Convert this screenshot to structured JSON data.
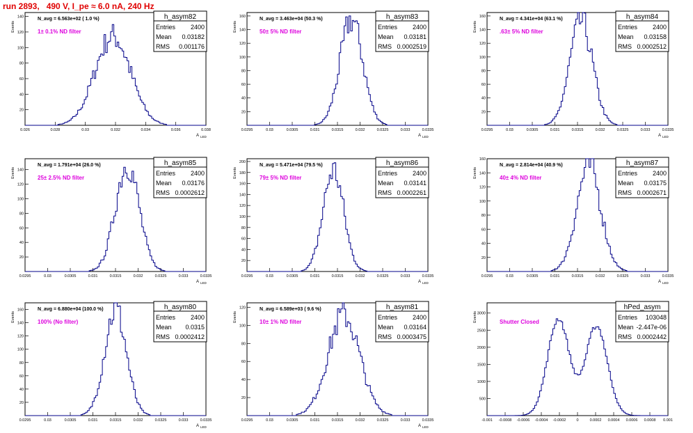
{
  "run_title": "run 2893,   490 V, I_pe ≈ 6.0 nA, 240 Hz",
  "stats_labels": [
    "Entries",
    "Mean",
    "RMS"
  ],
  "chart_data": [
    {
      "type": "histogram",
      "name": "h_asym82",
      "navg": "N_avg = 6.563e+02 ( 1.0 %)",
      "filter": "1± 0.1% ND filter",
      "entries": "2400",
      "mean": "0.03182",
      "rms": "0.001176",
      "ylabel": "Events",
      "xlabel": "A",
      "xlabel_sub": "LED",
      "xlim": [
        0.026,
        0.038
      ],
      "ylim": [
        0,
        145
      ],
      "xticks": [
        "0.026",
        "0.028",
        "0.03",
        "0.032",
        "0.034",
        "0.036",
        "0.038"
      ],
      "yticks": [
        "20",
        "40",
        "60",
        "80",
        "100",
        "120",
        "140"
      ],
      "stats_mean": 0.03182,
      "stats_rms": 0.001176,
      "peak": 115
    },
    {
      "type": "histogram",
      "name": "h_asym83",
      "navg": "N_avg = 3.463e+04 (50.3 %)",
      "filter": "50± 5% ND filter",
      "entries": "2400",
      "mean": "0.03181",
      "rms": "0.0002519",
      "ylabel": "Events",
      "xlabel": "A",
      "xlabel_sub": "LED",
      "xlim": [
        0.0295,
        0.0335
      ],
      "ylim": [
        0,
        165
      ],
      "xticks": [
        "0.0295",
        "0.03",
        "0.0305",
        "0.031",
        "0.0315",
        "0.032",
        "0.0325",
        "0.033",
        "0.0335"
      ],
      "yticks": [
        "20",
        "40",
        "60",
        "80",
        "100",
        "120",
        "140",
        "160"
      ],
      "stats_mean": 0.03181,
      "stats_rms": 0.0002519,
      "peak": 155
    },
    {
      "type": "histogram",
      "name": "h_asym84",
      "navg": "N_avg = 4.341e+04 (63.1 %)",
      "filter": ".63± 5% ND filter",
      "entries": "2400",
      "mean": "0.03158",
      "rms": "0.0002512",
      "ylabel": "Events",
      "xlabel": "A",
      "xlabel_sub": "LED",
      "xlim": [
        0.0295,
        0.0335
      ],
      "ylim": [
        0,
        165
      ],
      "xticks": [
        "0.0295",
        "0.03",
        "0.0305",
        "0.031",
        "0.0315",
        "0.032",
        "0.0325",
        "0.033",
        "0.0335"
      ],
      "yticks": [
        "20",
        "40",
        "60",
        "80",
        "100",
        "120",
        "140",
        "160"
      ],
      "stats_mean": 0.03158,
      "stats_rms": 0.0002512,
      "peak": 152
    },
    {
      "type": "histogram",
      "name": "h_asym85",
      "navg": "N_avg = 1.791e+04 (26.0 %)",
      "filter": "25± 2.5% ND filter",
      "entries": "2400",
      "mean": "0.03176",
      "rms": "0.0002612",
      "ylabel": "Events",
      "xlabel": "A",
      "xlabel_sub": "LED",
      "xlim": [
        0.0295,
        0.0335
      ],
      "ylim": [
        0,
        155
      ],
      "xticks": [
        "0.0295",
        "0.03",
        "0.0305",
        "0.031",
        "0.0315",
        "0.032",
        "0.0325",
        "0.033",
        "0.0335"
      ],
      "yticks": [
        "20",
        "40",
        "60",
        "80",
        "100",
        "120",
        "140"
      ],
      "stats_mean": 0.03176,
      "stats_rms": 0.0002612,
      "peak": 148
    },
    {
      "type": "histogram",
      "name": "h_asym86",
      "navg": "N_avg = 5.471e+04 (79.5 %)",
      "filter": "79± 5% ND filter",
      "entries": "2400",
      "mean": "0.03141",
      "rms": "0.0002261",
      "ylabel": "Events",
      "xlabel": "A",
      "xlabel_sub": "LED",
      "xlim": [
        0.0295,
        0.0335
      ],
      "ylim": [
        0,
        205
      ],
      "xticks": [
        "0.0295",
        "0.03",
        "0.0305",
        "0.031",
        "0.0315",
        "0.032",
        "0.0325",
        "0.033",
        "0.0335"
      ],
      "yticks": [
        "20",
        "40",
        "60",
        "80",
        "100",
        "120",
        "140",
        "160",
        "180",
        "200"
      ],
      "stats_mean": 0.03141,
      "stats_rms": 0.0002261,
      "peak": 185
    },
    {
      "type": "histogram",
      "name": "h_asym87",
      "navg": "N_avg = 2.814e+04 (40.9 %)",
      "filter": "40± 4% ND filter",
      "entries": "2400",
      "mean": "0.03175",
      "rms": "0.0002671",
      "ylabel": "Events",
      "xlabel": "A",
      "xlabel_sub": "LED",
      "xlim": [
        0.0295,
        0.0335
      ],
      "ylim": [
        0,
        160
      ],
      "xticks": [
        "0.0295",
        "0.03",
        "0.0305",
        "0.031",
        "0.0315",
        "0.032",
        "0.0325",
        "0.033",
        "0.0335"
      ],
      "yticks": [
        "20",
        "40",
        "60",
        "80",
        "100",
        "120",
        "140",
        "160"
      ],
      "stats_mean": 0.03175,
      "stats_rms": 0.0002671,
      "peak": 150
    },
    {
      "type": "histogram",
      "name": "h_asym80",
      "navg": "N_avg = 6.880e+04 (100.0 %)",
      "filter": "100% (No filter)",
      "entries": "2400",
      "mean": "0.0315",
      "rms": "0.0002412",
      "ylabel": "Events",
      "xlabel": "A",
      "xlabel_sub": "LED",
      "xlim": [
        0.0295,
        0.0335
      ],
      "ylim": [
        0,
        170
      ],
      "xticks": [
        "0.0295",
        "0.03",
        "0.0305",
        "0.031",
        "0.0315",
        "0.032",
        "0.0325",
        "0.033",
        "0.0335"
      ],
      "yticks": [
        "20",
        "40",
        "60",
        "80",
        "100",
        "120",
        "140",
        "160"
      ],
      "stats_mean": 0.0315,
      "stats_rms": 0.0002412,
      "peak": 160
    },
    {
      "type": "histogram",
      "name": "h_asym81",
      "navg": "N_avg = 6.589e+03 ( 9.6 %)",
      "filter": "10± 1% ND filter",
      "entries": "2400",
      "mean": "0.03164",
      "rms": "0.0003475",
      "ylabel": "Events",
      "xlabel": "A",
      "xlabel_sub": "LED",
      "xlim": [
        0.0295,
        0.0335
      ],
      "ylim": [
        0,
        125
      ],
      "xticks": [
        "0.0295",
        "0.03",
        "0.0305",
        "0.031",
        "0.0315",
        "0.032",
        "0.0325",
        "0.033",
        "0.0335"
      ],
      "yticks": [
        "20",
        "40",
        "60",
        "80",
        "100",
        "120"
      ],
      "stats_mean": 0.03164,
      "stats_rms": 0.0003475,
      "peak": 112
    },
    {
      "type": "histogram",
      "name": "hPed_asym",
      "navg": "",
      "filter": "Shutter Closed",
      "entries": "103048",
      "mean": "-2.447e-06",
      "rms": "0.0002442",
      "ylabel": "Events",
      "xlabel": "",
      "xlabel_sub": "",
      "xlim": [
        -0.001,
        0.001
      ],
      "ylim": [
        0,
        3300
      ],
      "xticks": [
        "-0.001",
        "-0.0008",
        "-0.0006",
        "-0.0004",
        "-0.0002",
        "0",
        "0.0002",
        "0.0004",
        "0.0006",
        "0.0008",
        "0.001"
      ],
      "yticks": [
        "500",
        "1000",
        "1500",
        "2000",
        "2500",
        "3000"
      ],
      "bimodal": true,
      "peak": 3050
    }
  ]
}
